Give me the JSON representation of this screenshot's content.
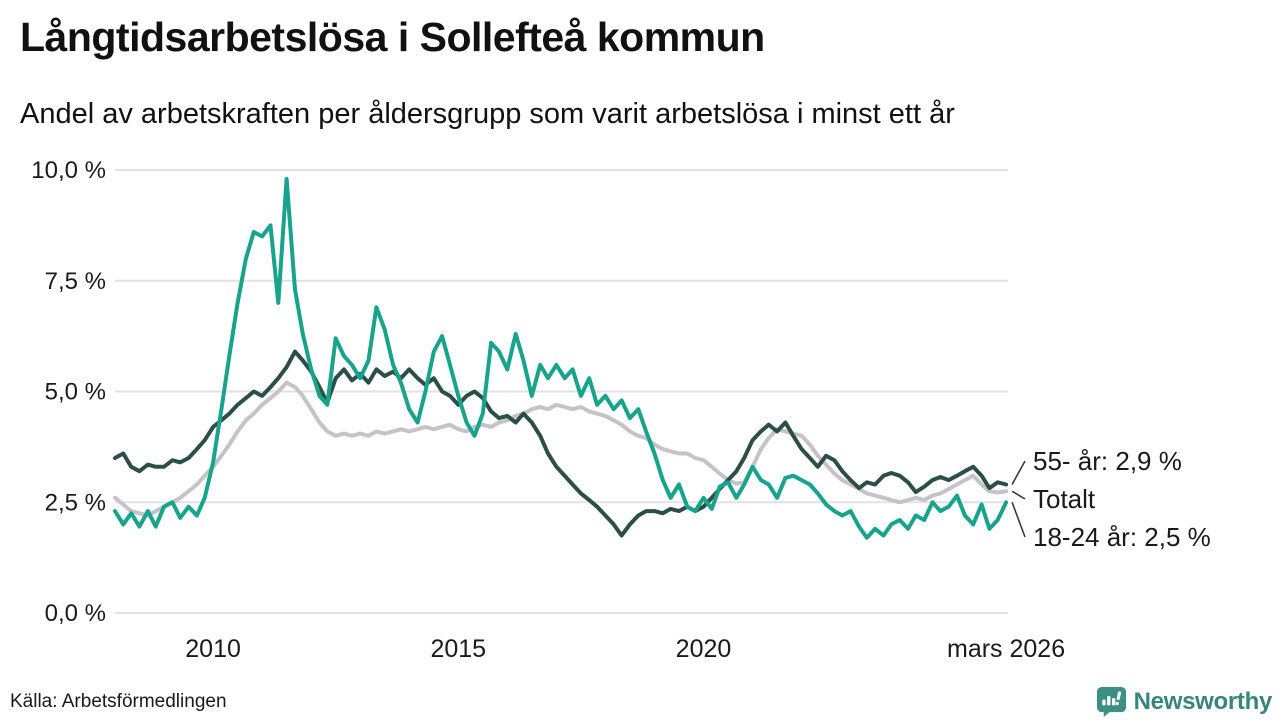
{
  "header": {
    "title": "Långtidsarbetslösa i Sollefteå kommun",
    "subtitle": "Andel av arbetskraften per åldersgrupp som varit arbetslösa i minst ett år"
  },
  "footer": {
    "source": "Källa: Arbetsförmedlingen",
    "logo_text": "Newsworthy"
  },
  "colors": {
    "series_55": "#2B4F46",
    "series_total": "#C5C2CA",
    "series_18_24": "#18A38D",
    "gridline": "#E2E2E2",
    "text": "#1A1A1A",
    "connector": "#3A3A3A",
    "logo": "#37867B"
  },
  "chart_data": {
    "type": "line",
    "title": "Långtidsarbetslösa i Sollefteå kommun",
    "subtitle": "Andel av arbetskraften per åldersgrupp som varit arbetslösa i minst ett år",
    "xlabel": "",
    "ylabel": "",
    "ylim": [
      0,
      10
    ],
    "grid": true,
    "legend_position": "right-end-labels",
    "y_ticks": [
      {
        "value": 10.0,
        "label": "10,0 %"
      },
      {
        "value": 7.5,
        "label": "7,5 %"
      },
      {
        "value": 5.0,
        "label": "5,0 %"
      },
      {
        "value": 2.5,
        "label": "2,5 %"
      },
      {
        "value": 0.0,
        "label": "0,0 %"
      }
    ],
    "x_ticks": [
      {
        "value": 2010,
        "label": "2010"
      },
      {
        "value": 2015,
        "label": "2015"
      },
      {
        "value": 2020,
        "label": "2020"
      },
      {
        "value": 2026.17,
        "label": "mars 2026"
      }
    ],
    "x_range": [
      2008.0,
      2026.25
    ],
    "x": [
      2008,
      2008.17,
      2008.33,
      2008.5,
      2008.67,
      2008.83,
      2009,
      2009.17,
      2009.33,
      2009.5,
      2009.67,
      2009.83,
      2010,
      2010.17,
      2010.33,
      2010.5,
      2010.67,
      2010.83,
      2011,
      2011.17,
      2011.33,
      2011.5,
      2011.67,
      2011.83,
      2012,
      2012.17,
      2012.33,
      2012.5,
      2012.67,
      2012.83,
      2013,
      2013.17,
      2013.33,
      2013.5,
      2013.67,
      2013.83,
      2014,
      2014.17,
      2014.33,
      2014.5,
      2014.67,
      2014.83,
      2015,
      2015.17,
      2015.33,
      2015.5,
      2015.67,
      2015.83,
      2016,
      2016.17,
      2016.33,
      2016.5,
      2016.67,
      2016.83,
      2017,
      2017.17,
      2017.33,
      2017.5,
      2017.67,
      2017.83,
      2018,
      2018.17,
      2018.33,
      2018.5,
      2018.67,
      2018.83,
      2019,
      2019.17,
      2019.33,
      2019.5,
      2019.67,
      2019.83,
      2020,
      2020.17,
      2020.33,
      2020.5,
      2020.67,
      2020.83,
      2021,
      2021.17,
      2021.33,
      2021.5,
      2021.67,
      2021.83,
      2022,
      2022.17,
      2022.33,
      2022.5,
      2022.67,
      2022.83,
      2023,
      2023.17,
      2023.33,
      2023.5,
      2023.67,
      2023.83,
      2024,
      2024.17,
      2024.33,
      2024.5,
      2024.67,
      2024.83,
      2025,
      2025.17,
      2025.33,
      2025.5,
      2025.67,
      2025.83,
      2026,
      2026.17
    ],
    "series": [
      {
        "name": "55- år",
        "end_label": "55- år: 2,9 %",
        "final_value_label": "2,9 %",
        "color": "#2B4F46",
        "values": [
          3.5,
          3.6,
          3.3,
          3.2,
          3.35,
          3.3,
          3.3,
          3.45,
          3.4,
          3.5,
          3.7,
          3.9,
          4.2,
          4.35,
          4.5,
          4.7,
          4.85,
          5.0,
          4.9,
          5.1,
          5.3,
          5.55,
          5.9,
          5.7,
          5.45,
          5.1,
          4.75,
          5.3,
          5.5,
          5.25,
          5.4,
          5.2,
          5.5,
          5.35,
          5.45,
          5.3,
          5.5,
          5.3,
          5.15,
          5.3,
          5.0,
          4.9,
          4.7,
          4.9,
          5.0,
          4.85,
          4.55,
          4.4,
          4.45,
          4.3,
          4.5,
          4.3,
          4.0,
          3.6,
          3.3,
          3.1,
          2.9,
          2.7,
          2.55,
          2.4,
          2.2,
          2.0,
          1.75,
          2.0,
          2.2,
          2.3,
          2.3,
          2.25,
          2.35,
          2.3,
          2.4,
          2.3,
          2.4,
          2.6,
          2.8,
          3.0,
          3.2,
          3.5,
          3.9,
          4.1,
          4.25,
          4.1,
          4.3,
          4.0,
          3.7,
          3.5,
          3.3,
          3.55,
          3.45,
          3.2,
          3.0,
          2.82,
          2.95,
          2.9,
          3.1,
          3.16,
          3.1,
          2.95,
          2.73,
          2.85,
          3.0,
          3.07,
          3.0,
          3.1,
          3.2,
          3.3,
          3.1,
          2.82,
          2.95,
          2.9
        ]
      },
      {
        "name": "Totalt",
        "end_label": "Totalt",
        "final_value_label": "",
        "color": "#C5C2CA",
        "values": [
          2.6,
          2.45,
          2.3,
          2.25,
          2.2,
          2.3,
          2.4,
          2.5,
          2.6,
          2.75,
          2.9,
          3.1,
          3.3,
          3.55,
          3.8,
          4.1,
          4.35,
          4.5,
          4.7,
          4.85,
          5.0,
          5.2,
          5.1,
          4.9,
          4.6,
          4.3,
          4.1,
          4.0,
          4.05,
          4.0,
          4.05,
          4.0,
          4.1,
          4.05,
          4.1,
          4.15,
          4.1,
          4.15,
          4.2,
          4.15,
          4.2,
          4.25,
          4.15,
          4.1,
          4.2,
          4.25,
          4.2,
          4.3,
          4.35,
          4.45,
          4.5,
          4.6,
          4.65,
          4.6,
          4.7,
          4.65,
          4.6,
          4.65,
          4.55,
          4.5,
          4.45,
          4.35,
          4.25,
          4.1,
          4.0,
          3.95,
          3.8,
          3.7,
          3.65,
          3.6,
          3.6,
          3.5,
          3.45,
          3.3,
          3.15,
          3.0,
          2.92,
          2.95,
          3.3,
          3.7,
          3.95,
          4.15,
          4.1,
          4.05,
          4.0,
          3.8,
          3.55,
          3.35,
          3.15,
          3.0,
          2.9,
          2.8,
          2.7,
          2.65,
          2.6,
          2.55,
          2.5,
          2.55,
          2.6,
          2.55,
          2.65,
          2.7,
          2.8,
          2.9,
          3.0,
          3.1,
          2.9,
          2.75,
          2.72,
          2.75
        ]
      },
      {
        "name": "18-24 år",
        "end_label": "18-24 år: 2,5 %",
        "final_value_label": "2,5 %",
        "color": "#18A38D",
        "values": [
          2.3,
          2.0,
          2.25,
          1.95,
          2.3,
          1.95,
          2.4,
          2.5,
          2.15,
          2.4,
          2.2,
          2.6,
          3.4,
          4.6,
          5.8,
          7.0,
          8.0,
          8.6,
          8.5,
          8.75,
          7.0,
          9.8,
          7.3,
          6.3,
          5.5,
          4.9,
          4.7,
          6.2,
          5.8,
          5.6,
          5.3,
          5.7,
          6.9,
          6.4,
          5.6,
          5.2,
          4.6,
          4.3,
          5.0,
          5.9,
          6.25,
          5.6,
          4.9,
          4.3,
          4.0,
          4.5,
          6.1,
          5.9,
          5.5,
          6.3,
          5.7,
          4.9,
          5.6,
          5.3,
          5.6,
          5.3,
          5.5,
          4.9,
          5.3,
          4.7,
          4.9,
          4.6,
          4.8,
          4.4,
          4.6,
          4.1,
          3.6,
          3.0,
          2.6,
          2.9,
          2.4,
          2.3,
          2.6,
          2.35,
          2.85,
          2.95,
          2.6,
          2.9,
          3.3,
          3.0,
          2.9,
          2.6,
          3.05,
          3.1,
          3.0,
          2.9,
          2.7,
          2.45,
          2.3,
          2.2,
          2.3,
          1.95,
          1.7,
          1.9,
          1.75,
          2.0,
          2.1,
          1.9,
          2.2,
          2.1,
          2.5,
          2.3,
          2.4,
          2.65,
          2.2,
          2.0,
          2.45,
          1.9,
          2.1,
          2.5
        ]
      }
    ]
  }
}
